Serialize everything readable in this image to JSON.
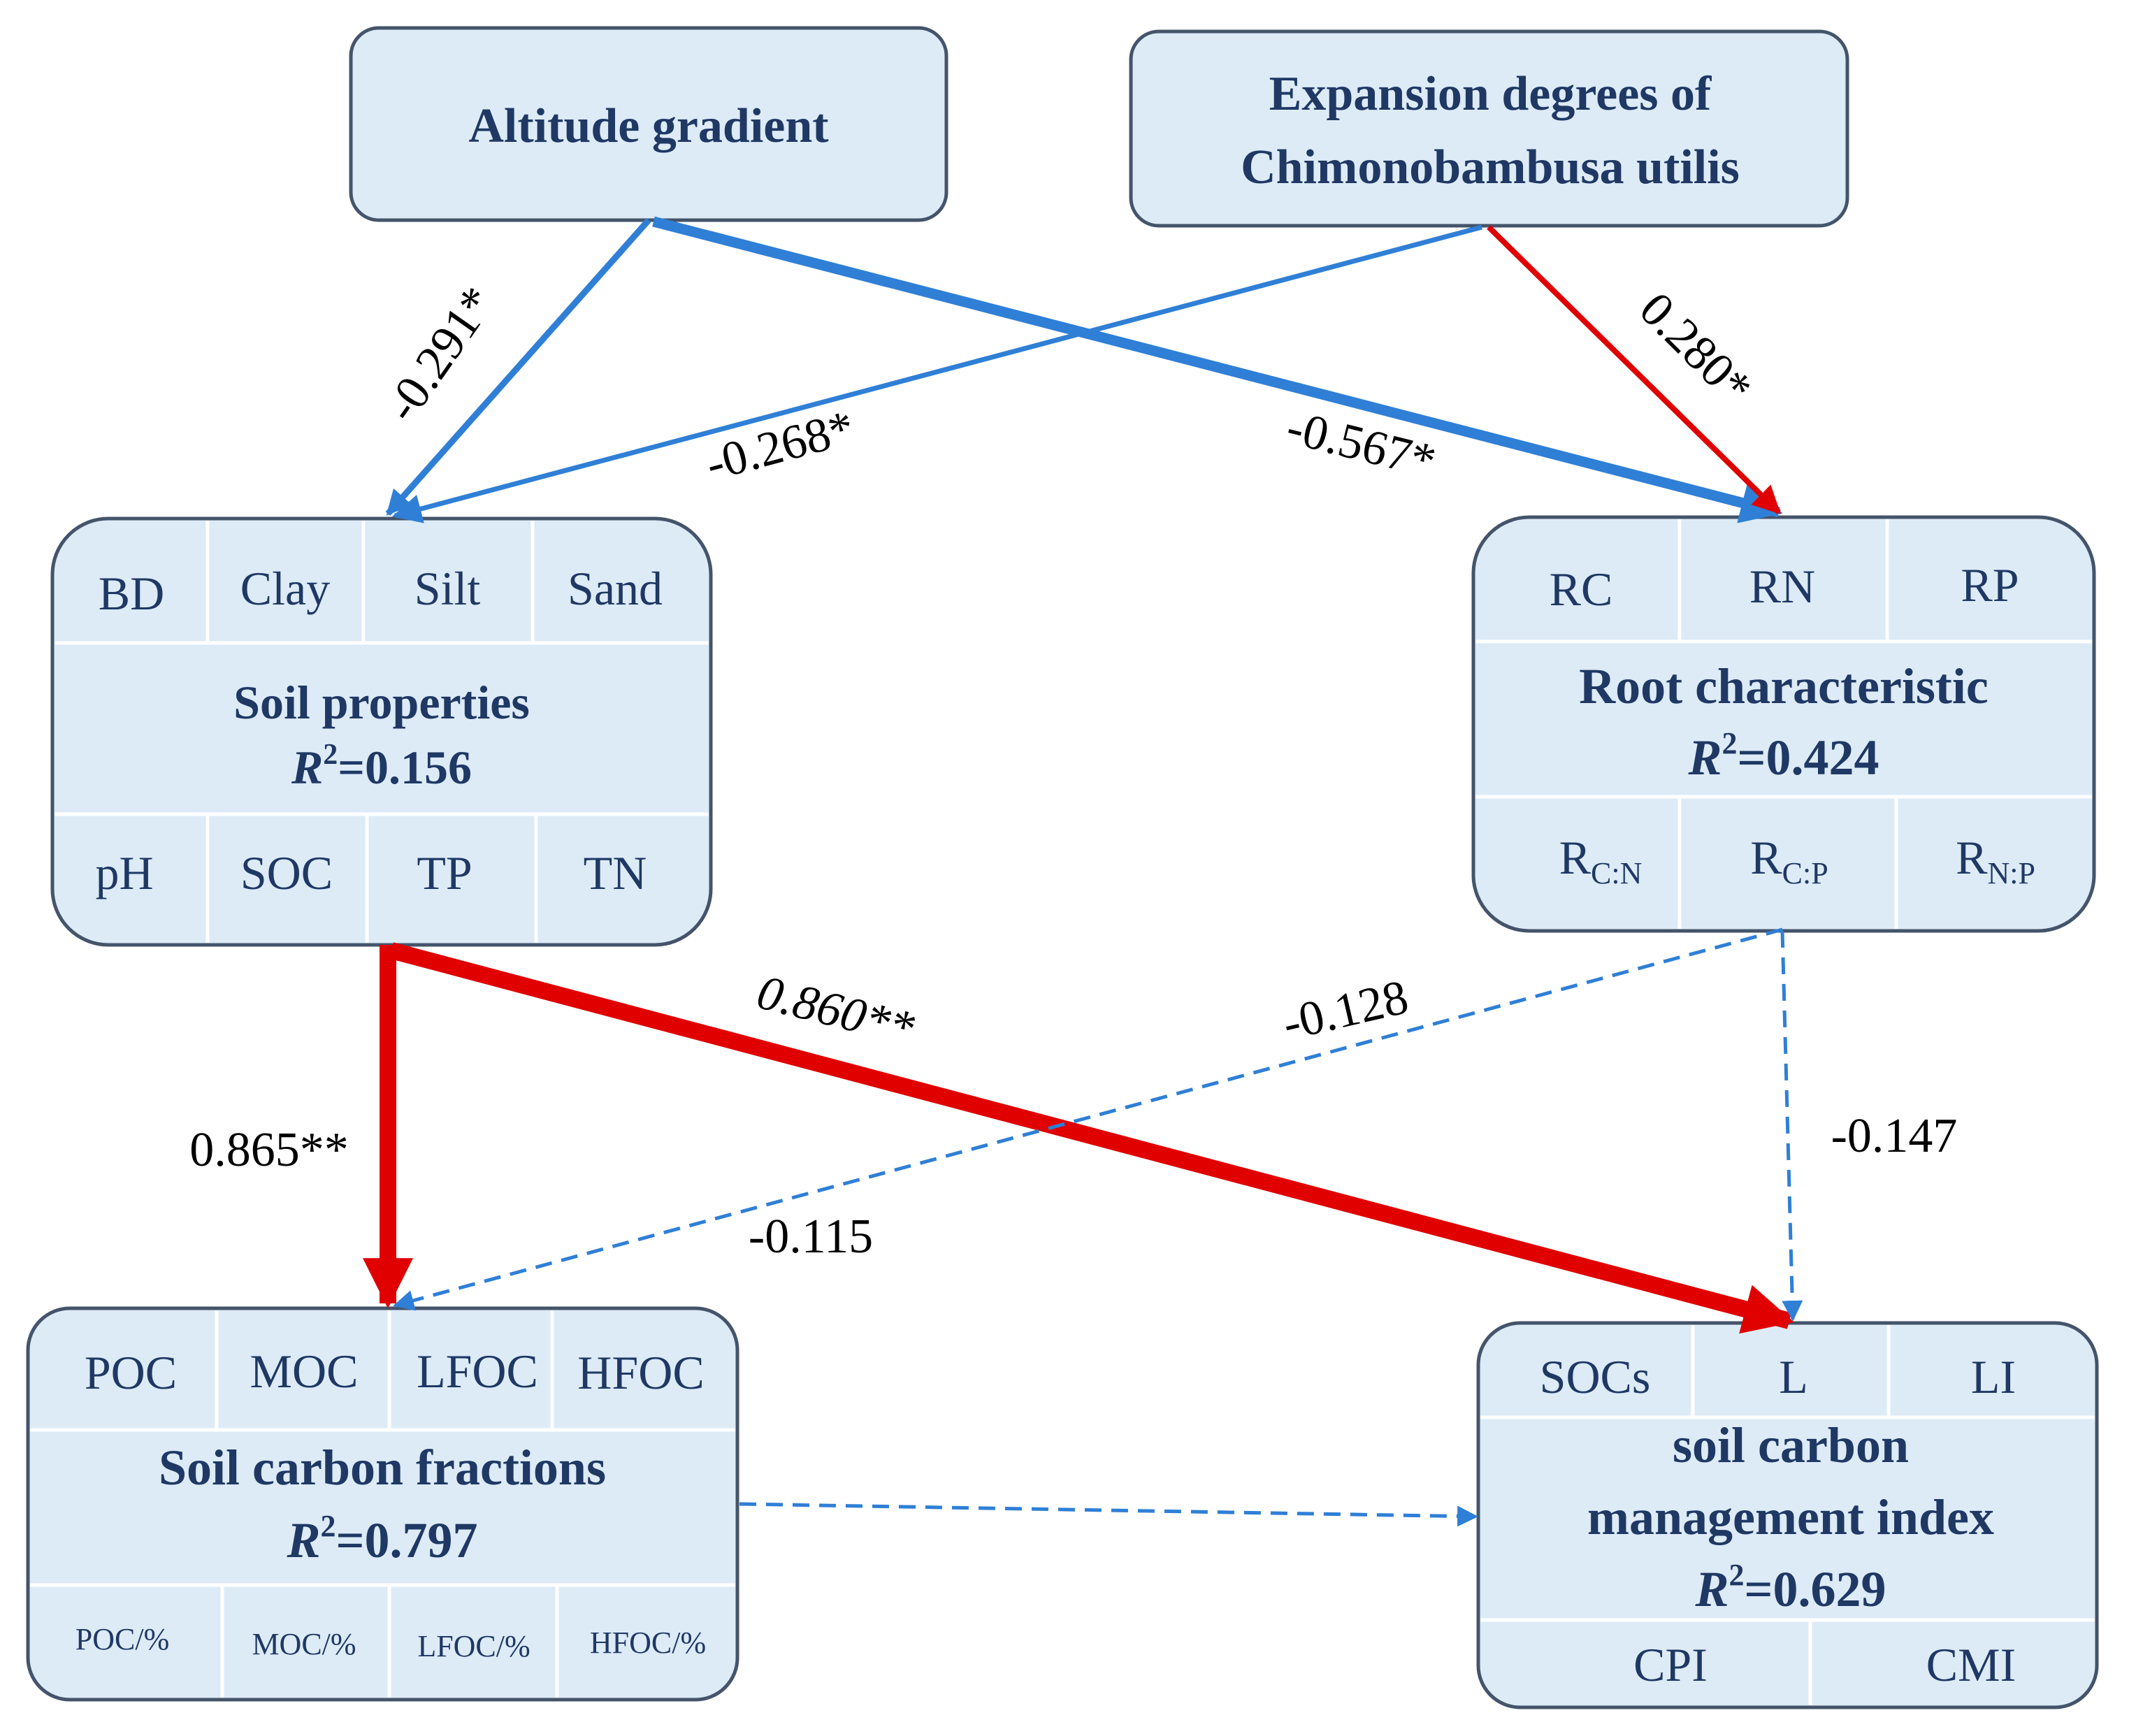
{
  "nodes": {
    "altitude": {
      "label": "Altitude gradient"
    },
    "expansion": {
      "line1": "Expansion degrees of",
      "line2": "Chimonobambusa utilis"
    },
    "soil_properties": {
      "top_cells": [
        "BD",
        "Clay",
        "Silt",
        "Sand"
      ],
      "title": "Soil properties",
      "r2_symbol": "R",
      "r2_exp": "2",
      "r2_value": "=0.156",
      "bottom_cells": [
        "pH",
        "SOC",
        "TP",
        "TN"
      ]
    },
    "root_characteristic": {
      "top_cells": [
        "RC",
        "RN",
        "RP"
      ],
      "title": "Root characteristic",
      "r2_symbol": "R",
      "r2_exp": "2",
      "r2_value": "=0.424",
      "bottom_cells": [
        {
          "main": "R",
          "sub": "C:N"
        },
        {
          "main": "R",
          "sub": "C:P"
        },
        {
          "main": "R",
          "sub": "N:P"
        }
      ]
    },
    "soil_carbon_fractions": {
      "top_cells": [
        "POC",
        "MOC",
        "LFOC",
        "HFOC"
      ],
      "title": "Soil carbon fractions",
      "r2_symbol": "R",
      "r2_exp": "2",
      "r2_value": "=0.797",
      "bottom_cells": [
        "POC/%",
        "MOC/%",
        "LFOC/%",
        "HFOC/%"
      ]
    },
    "scmi": {
      "top_cells": [
        "SOCs",
        "L",
        "LI"
      ],
      "title_line1": "soil carbon",
      "title_line2": "management index",
      "r2_symbol": "R",
      "r2_exp": "2",
      "r2_value": "=0.629",
      "bottom_cells": [
        "CPI",
        "CMI"
      ]
    }
  },
  "paths": {
    "alt_to_soil": {
      "coef": "-0.291*",
      "sign": "negative",
      "significant": true
    },
    "exp_to_soil": {
      "coef": "-0.268*",
      "sign": "negative",
      "significant": true
    },
    "alt_to_root": {
      "coef": "-0.567*",
      "sign": "negative",
      "significant": true
    },
    "exp_to_root": {
      "coef": "0.280*",
      "sign": "positive",
      "significant": true
    },
    "soil_to_fractions": {
      "coef": "0.865**",
      "sign": "positive",
      "significant": true
    },
    "soil_to_scmi": {
      "coef": "0.860**",
      "sign": "positive",
      "significant": true
    },
    "root_to_fractions": {
      "coef": "-0.128",
      "sign": "negative",
      "significant": false
    },
    "root_to_scmi": {
      "coef": "-0.147",
      "sign": "negative",
      "significant": false
    },
    "fractions_to_scmi_label": {
      "coef": "-0.115"
    }
  },
  "colors": {
    "positive": "#e00000",
    "negative": "#2f7fd6",
    "box_fill": "#ddebf7",
    "box_stroke": "#44546a",
    "text": "#1f3864"
  }
}
